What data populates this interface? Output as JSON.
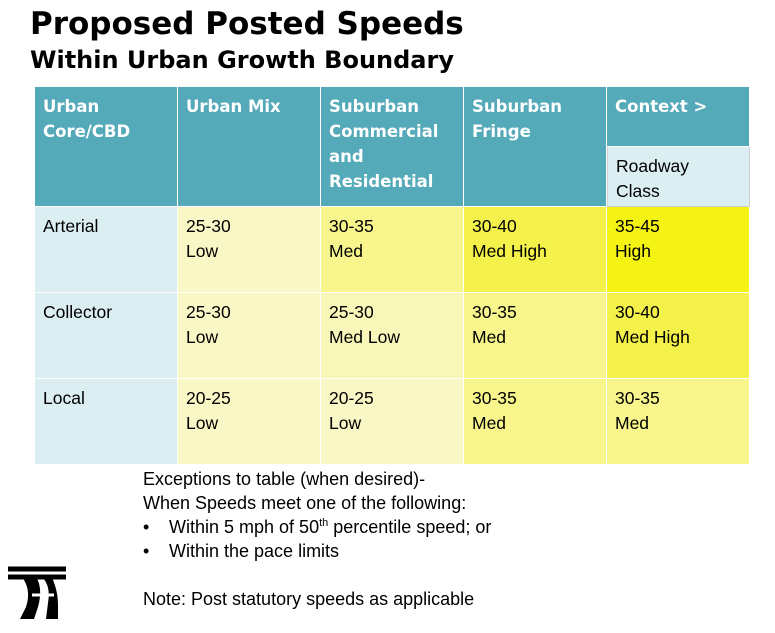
{
  "title": "Proposed Posted Speeds",
  "subtitle": "Within Urban Growth Boundary",
  "table": {
    "corner_top": "Context >",
    "corner_bottom_lines": [
      "Roadway",
      "Class"
    ],
    "headers": [
      {
        "lines": [
          "Urban",
          "Core/CBD"
        ]
      },
      {
        "lines": [
          "Urban Mix"
        ]
      },
      {
        "lines": [
          "Suburban",
          "Commercial",
          "and",
          "Residential"
        ]
      },
      {
        "lines": [
          "Suburban",
          "Fringe"
        ]
      }
    ],
    "rows": [
      {
        "label": "Arterial",
        "cells": [
          {
            "range": "25-30",
            "level": "Low"
          },
          {
            "range": "30-35",
            "level": "Med"
          },
          {
            "range": "30-40",
            "level": "Med High"
          },
          {
            "range": "35-45",
            "level": "High"
          }
        ]
      },
      {
        "label": "Collector",
        "cells": [
          {
            "range": "25-30",
            "level": "Low"
          },
          {
            "range": "25-30",
            "level": "Med Low"
          },
          {
            "range": "30-35",
            "level": "Med"
          },
          {
            "range": "30-40",
            "level": "Med High"
          }
        ]
      },
      {
        "label": "Local",
        "cells": [
          {
            "range": "20-25",
            "level": "Low"
          },
          {
            "range": "20-25",
            "level": "Low"
          },
          {
            "range": "30-35",
            "level": "Med"
          },
          {
            "range": "30-35",
            "level": "Med"
          }
        ]
      }
    ]
  },
  "notes": {
    "line1": "Exceptions to table (when desired)-",
    "line2": "When Speeds meet one of the following:",
    "bullet_char": "•",
    "bullet1_pre": "Within 5 mph of 50",
    "bullet1_sup": "th",
    "bullet1_post": " percentile speed; or",
    "bullet2": "Within the pace limits",
    "note": "Note: Post statutory speeds as applicable"
  },
  "colors": {
    "header_teal": "#54aab8",
    "label_light": "#dbeef1",
    "low": "#f9f7c5",
    "med_low": "#f8f6b8",
    "med": "#f7f58c",
    "med_high": "#f4f24a",
    "high": "#f5f314"
  },
  "logo_icon": "transit-agency-logo-icon"
}
